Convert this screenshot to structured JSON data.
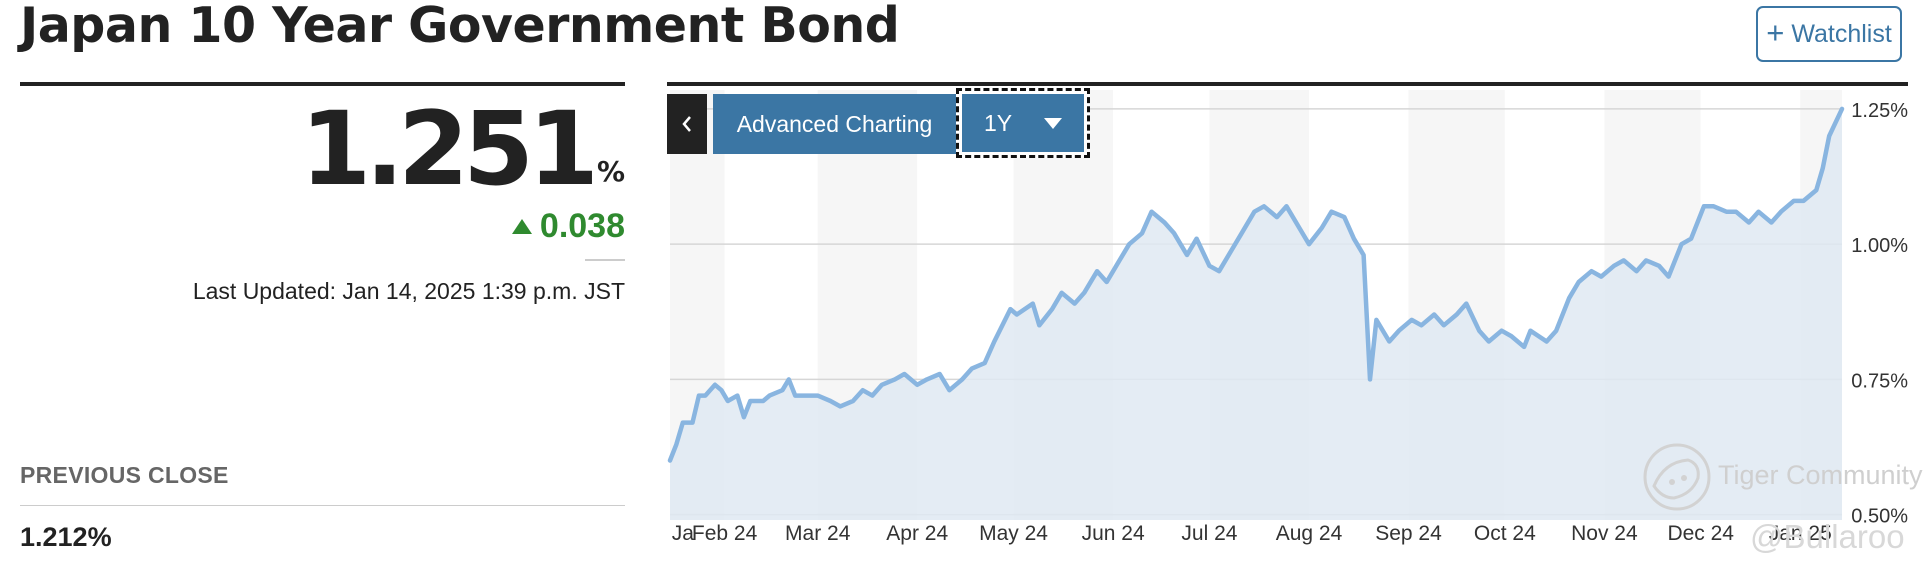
{
  "header": {
    "title": "Japan 10 Year Government Bond",
    "watchlist_label": "Watchlist",
    "watchlist_icon": "plus-icon"
  },
  "quote": {
    "price": "1.251",
    "unit": "%",
    "change": "0.038",
    "change_direction": "up",
    "change_color": "#2f8a2f",
    "last_updated": "Last Updated: Jan 14, 2025 1:39 p.m. JST"
  },
  "previous_close": {
    "label": "PREVIOUS CLOSE",
    "value": "1.212%"
  },
  "chart_toolbar": {
    "collapse_icon": "chevron-left-icon",
    "advanced_label": "Advanced Charting",
    "range_label": "1Y",
    "range_icon": "caret-down-icon"
  },
  "colors": {
    "accent": "#3b76a4",
    "line": "#89b5e0",
    "area": "#dfe9f2"
  },
  "watermark": {
    "community": "Tiger Community",
    "user": "@Bullaroo"
  },
  "chart_data": {
    "type": "area",
    "title": "",
    "xlabel": "",
    "ylabel": "",
    "ylim": [
      0.49,
      1.285
    ],
    "yticks": [
      0.5,
      0.75,
      1.0,
      1.25
    ],
    "ytick_labels": [
      "0.50%",
      "0.75%",
      "1.00%",
      "1.25%"
    ],
    "xtick_labels": [
      "Ja",
      "Feb 24",
      "Mar 24",
      "Apr 24",
      "May 24",
      "Jun 24",
      "Jul 24",
      "Aug 24",
      "Sep 24",
      "Oct 24",
      "Nov 24",
      "Dec 24",
      "Jan 25"
    ],
    "x_start": "2024-01-15",
    "x_end": "2025-01-14",
    "grid": true,
    "series": [
      {
        "name": "",
        "points": [
          [
            "2024-01-15",
            0.6
          ],
          [
            "2024-01-17",
            0.63
          ],
          [
            "2024-01-19",
            0.67
          ],
          [
            "2024-01-22",
            0.67
          ],
          [
            "2024-01-24",
            0.72
          ],
          [
            "2024-01-26",
            0.72
          ],
          [
            "2024-01-29",
            0.74
          ],
          [
            "2024-01-31",
            0.73
          ],
          [
            "2024-02-02",
            0.71
          ],
          [
            "2024-02-05",
            0.72
          ],
          [
            "2024-02-07",
            0.68
          ],
          [
            "2024-02-09",
            0.71
          ],
          [
            "2024-02-13",
            0.71
          ],
          [
            "2024-02-15",
            0.72
          ],
          [
            "2024-02-19",
            0.73
          ],
          [
            "2024-02-21",
            0.75
          ],
          [
            "2024-02-23",
            0.72
          ],
          [
            "2024-02-27",
            0.72
          ],
          [
            "2024-03-01",
            0.72
          ],
          [
            "2024-03-05",
            0.71
          ],
          [
            "2024-03-08",
            0.7
          ],
          [
            "2024-03-12",
            0.71
          ],
          [
            "2024-03-15",
            0.73
          ],
          [
            "2024-03-18",
            0.72
          ],
          [
            "2024-03-21",
            0.74
          ],
          [
            "2024-03-25",
            0.75
          ],
          [
            "2024-03-28",
            0.76
          ],
          [
            "2024-04-01",
            0.74
          ],
          [
            "2024-04-04",
            0.75
          ],
          [
            "2024-04-08",
            0.76
          ],
          [
            "2024-04-11",
            0.73
          ],
          [
            "2024-04-15",
            0.75
          ],
          [
            "2024-04-18",
            0.77
          ],
          [
            "2024-04-22",
            0.78
          ],
          [
            "2024-04-25",
            0.82
          ],
          [
            "2024-04-30",
            0.88
          ],
          [
            "2024-05-02",
            0.87
          ],
          [
            "2024-05-07",
            0.89
          ],
          [
            "2024-05-09",
            0.85
          ],
          [
            "2024-05-13",
            0.88
          ],
          [
            "2024-05-16",
            0.91
          ],
          [
            "2024-05-20",
            0.89
          ],
          [
            "2024-05-23",
            0.91
          ],
          [
            "2024-05-27",
            0.95
          ],
          [
            "2024-05-30",
            0.93
          ],
          [
            "2024-06-03",
            0.97
          ],
          [
            "2024-06-06",
            1.0
          ],
          [
            "2024-06-10",
            1.02
          ],
          [
            "2024-06-13",
            1.06
          ],
          [
            "2024-06-17",
            1.04
          ],
          [
            "2024-06-20",
            1.02
          ],
          [
            "2024-06-24",
            0.98
          ],
          [
            "2024-06-27",
            1.01
          ],
          [
            "2024-07-01",
            0.96
          ],
          [
            "2024-07-04",
            0.95
          ],
          [
            "2024-07-08",
            0.99
          ],
          [
            "2024-07-11",
            1.02
          ],
          [
            "2024-07-15",
            1.06
          ],
          [
            "2024-07-18",
            1.07
          ],
          [
            "2024-07-22",
            1.05
          ],
          [
            "2024-07-25",
            1.07
          ],
          [
            "2024-07-29",
            1.03
          ],
          [
            "2024-08-01",
            1.0
          ],
          [
            "2024-08-05",
            1.03
          ],
          [
            "2024-08-08",
            1.06
          ],
          [
            "2024-08-12",
            1.05
          ],
          [
            "2024-08-15",
            1.01
          ],
          [
            "2024-08-18",
            0.98
          ],
          [
            "2024-08-20",
            0.75
          ],
          [
            "2024-08-22",
            0.86
          ],
          [
            "2024-08-26",
            0.82
          ],
          [
            "2024-08-29",
            0.84
          ],
          [
            "2024-09-02",
            0.86
          ],
          [
            "2024-09-05",
            0.85
          ],
          [
            "2024-09-09",
            0.87
          ],
          [
            "2024-09-12",
            0.85
          ],
          [
            "2024-09-16",
            0.87
          ],
          [
            "2024-09-19",
            0.89
          ],
          [
            "2024-09-23",
            0.84
          ],
          [
            "2024-09-26",
            0.82
          ],
          [
            "2024-09-30",
            0.84
          ],
          [
            "2024-10-03",
            0.83
          ],
          [
            "2024-10-07",
            0.81
          ],
          [
            "2024-10-09",
            0.84
          ],
          [
            "2024-10-14",
            0.82
          ],
          [
            "2024-10-17",
            0.84
          ],
          [
            "2024-10-21",
            0.9
          ],
          [
            "2024-10-24",
            0.93
          ],
          [
            "2024-10-28",
            0.95
          ],
          [
            "2024-10-31",
            0.94
          ],
          [
            "2024-11-04",
            0.96
          ],
          [
            "2024-11-07",
            0.97
          ],
          [
            "2024-11-11",
            0.95
          ],
          [
            "2024-11-14",
            0.97
          ],
          [
            "2024-11-18",
            0.96
          ],
          [
            "2024-11-21",
            0.94
          ],
          [
            "2024-11-25",
            1.0
          ],
          [
            "2024-11-28",
            1.01
          ],
          [
            "2024-12-02",
            1.07
          ],
          [
            "2024-12-05",
            1.07
          ],
          [
            "2024-12-09",
            1.06
          ],
          [
            "2024-12-12",
            1.06
          ],
          [
            "2024-12-16",
            1.04
          ],
          [
            "2024-12-19",
            1.06
          ],
          [
            "2024-12-23",
            1.04
          ],
          [
            "2024-12-26",
            1.06
          ],
          [
            "2024-12-30",
            1.08
          ],
          [
            "2025-01-02",
            1.08
          ],
          [
            "2025-01-06",
            1.1
          ],
          [
            "2025-01-08",
            1.14
          ],
          [
            "2025-01-10",
            1.2
          ],
          [
            "2025-01-14",
            1.25
          ]
        ]
      }
    ]
  }
}
